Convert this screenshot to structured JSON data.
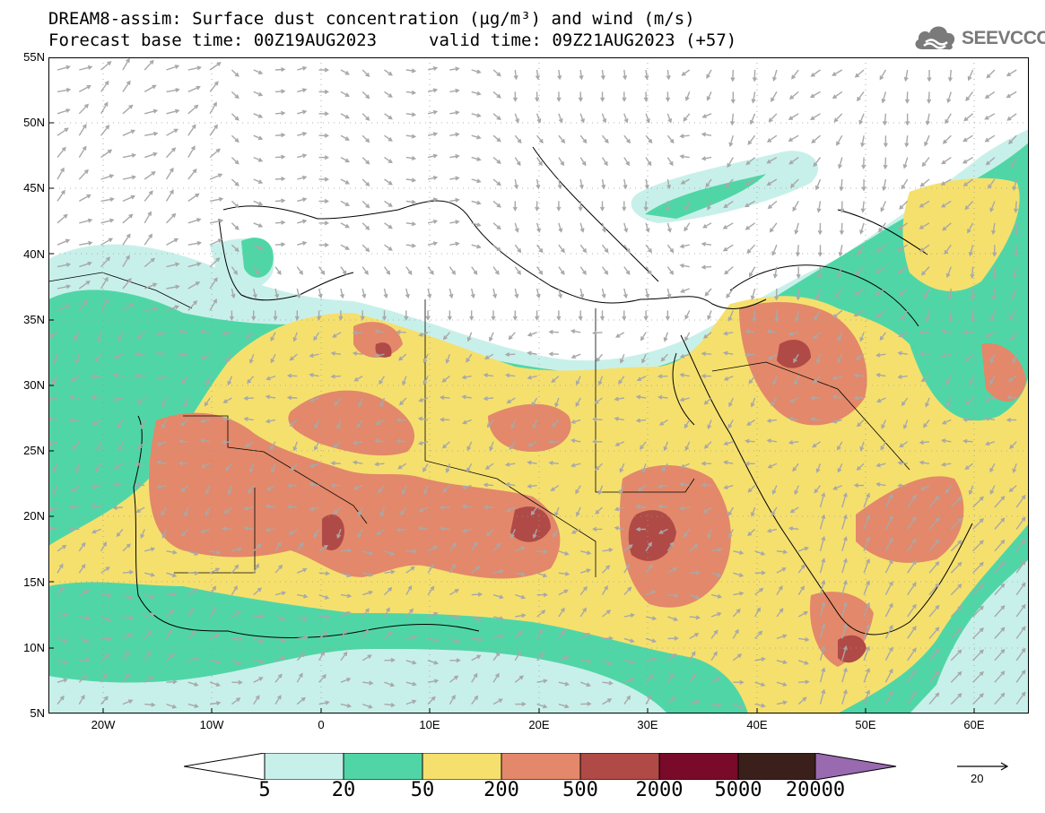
{
  "title": {
    "line1": "DREAM8-assim: Surface dust concentration (µg/m³) and wind (m/s)",
    "base": "Forecast base time: 00Z19AUG2023",
    "valid": "valid time: 09Z21AUG2023 (+57)"
  },
  "logo": {
    "text": "SEEVCCC",
    "icon": "cloud-icon"
  },
  "axes": {
    "lat_labels": [
      "55N",
      "50N",
      "45N",
      "40N",
      "35N",
      "30N",
      "25N",
      "20N",
      "15N",
      "10N",
      "5N"
    ],
    "lon_labels": [
      "20W",
      "10W",
      "0",
      "10E",
      "20E",
      "30E",
      "40E",
      "50E",
      "60E"
    ],
    "lon_range": [
      -25,
      65
    ],
    "lat_range": [
      5,
      55
    ]
  },
  "legend": {
    "labels": [
      "5",
      "20",
      "50",
      "200",
      "500",
      "2000",
      "5000",
      "20000"
    ],
    "colors": [
      "#ffffff",
      "#c8f0ea",
      "#50d6a6",
      "#f5e06e",
      "#e3886a",
      "#b04a46",
      "#7a0a2a",
      "#3b1f1a",
      "#9a6ab0"
    ],
    "wind_ref_value": "20"
  },
  "colors": {
    "c5": "#c8f0ea",
    "c20": "#50d6a6",
    "c50": "#f5e06e",
    "c200": "#e3886a",
    "c500": "#b04a46",
    "land": "#ffffff",
    "coast": "#000000",
    "arrows": "#a8a8a8"
  }
}
